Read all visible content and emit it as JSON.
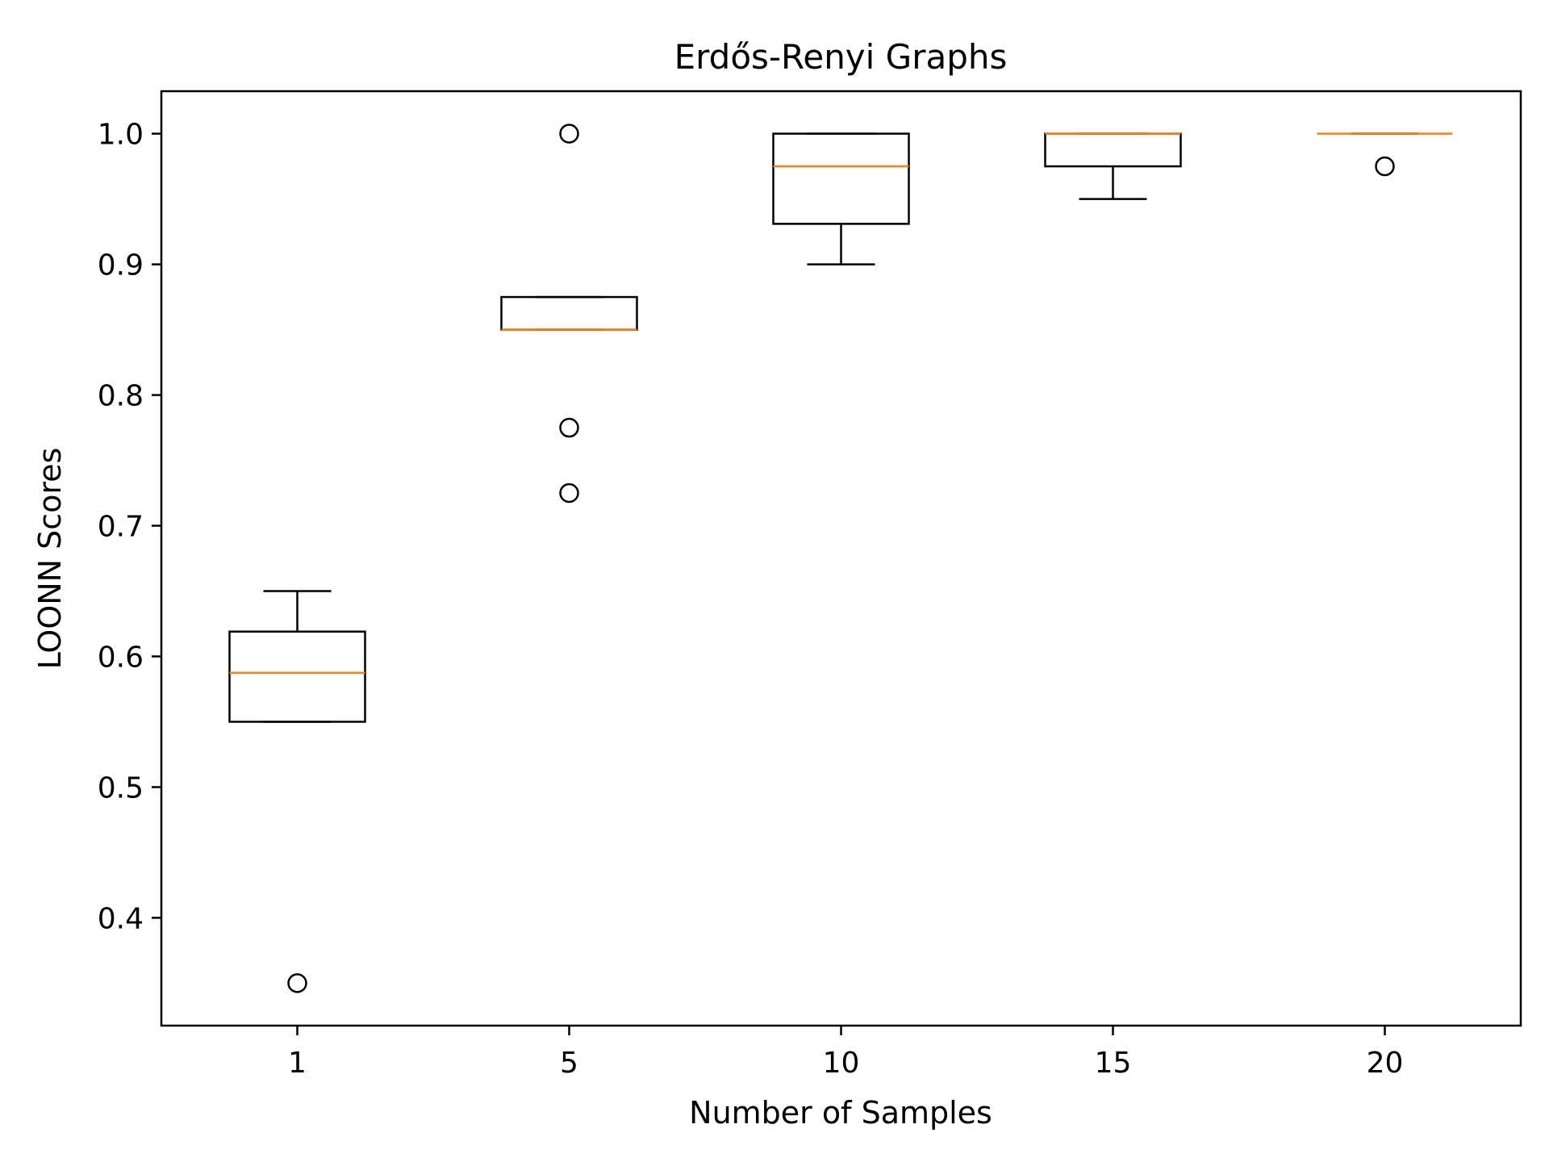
{
  "chart_data": {
    "type": "box",
    "title": "Erdős-Renyi Graphs",
    "xlabel": "Number of Samples",
    "ylabel": "LOONN Scores",
    "categories": [
      "1",
      "5",
      "10",
      "15",
      "20"
    ],
    "ylim": [
      0.3175,
      1.0325
    ],
    "yticks": [
      "0.4",
      "0.5",
      "0.6",
      "0.7",
      "0.8",
      "0.9",
      "1.0"
    ],
    "grid": false,
    "boxes": [
      {
        "category": "1",
        "whisker_low": 0.55,
        "q1": 0.55,
        "median": 0.5875,
        "q3": 0.619,
        "whisker_high": 0.65,
        "outliers": [
          0.35
        ]
      },
      {
        "category": "5",
        "whisker_low": 0.85,
        "q1": 0.85,
        "median": 0.85,
        "q3": 0.875,
        "whisker_high": 0.875,
        "outliers": [
          1.0,
          0.775,
          0.725
        ]
      },
      {
        "category": "10",
        "whisker_low": 0.9,
        "q1": 0.931,
        "median": 0.975,
        "q3": 1.0,
        "whisker_high": 1.0,
        "outliers": []
      },
      {
        "category": "15",
        "whisker_low": 0.95,
        "q1": 0.975,
        "median": 1.0,
        "q3": 1.0,
        "whisker_high": 1.0,
        "outliers": []
      },
      {
        "category": "20",
        "whisker_low": 1.0,
        "q1": 1.0,
        "median": 1.0,
        "q3": 1.0,
        "whisker_high": 1.0,
        "outliers": [
          0.975
        ]
      }
    ],
    "colors": {
      "box": "#000000",
      "median": "#ff7f0e",
      "outlier": "#000000"
    }
  }
}
